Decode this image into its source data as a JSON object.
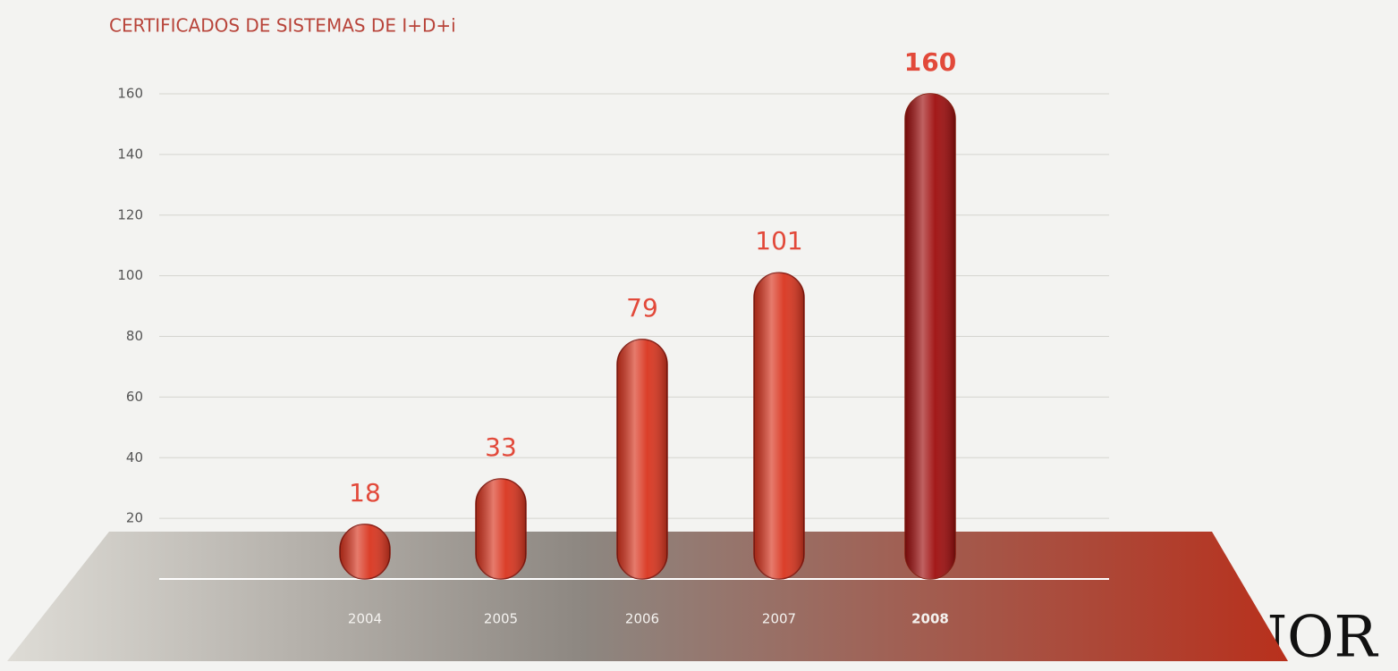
{
  "chart_data": {
    "type": "bar",
    "title": "CERTIFICADOS DE SISTEMAS DE I+D+i",
    "categories": [
      "2004",
      "2005",
      "2006",
      "2007",
      "2008"
    ],
    "values": [
      18,
      33,
      79,
      101,
      160
    ],
    "colors": [
      "#d9341e",
      "#d9341e",
      "#d9341e",
      "#d9341e",
      "#9e0d0d"
    ],
    "ylim": [
      0,
      160
    ],
    "yticks": [
      0,
      20,
      40,
      60,
      80,
      100,
      120,
      140,
      160
    ],
    "grid": true,
    "annotation": "AENOR"
  }
}
